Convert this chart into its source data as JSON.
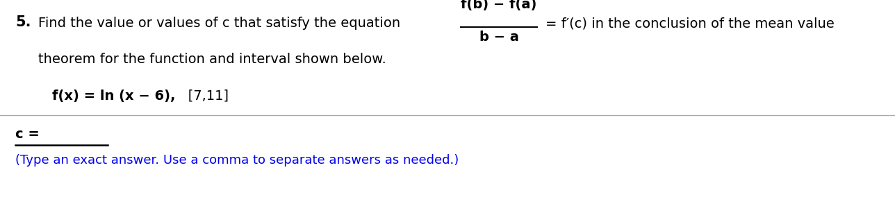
{
  "number": "5.",
  "line1_pre": "Find the value or values of c that satisfy the equation",
  "frac_num": "f(b) − f(a)",
  "frac_den": "b − a",
  "line1_post": "= f′(c) in the conclusion of the mean value",
  "line2": "theorem for the function and interval shown below.",
  "line3_fx": "f(x) = ln (x − 6),",
  "line3_interval": "   [7,11]",
  "answer_label": "c =",
  "hint": "(Type an exact answer. Use a comma to separate answers as needed.)",
  "bg_color": "#ffffff",
  "text_color": "#000000",
  "hint_color": "#0000ee",
  "fs": 14,
  "fs_bold": 14,
  "fs_hint": 13
}
